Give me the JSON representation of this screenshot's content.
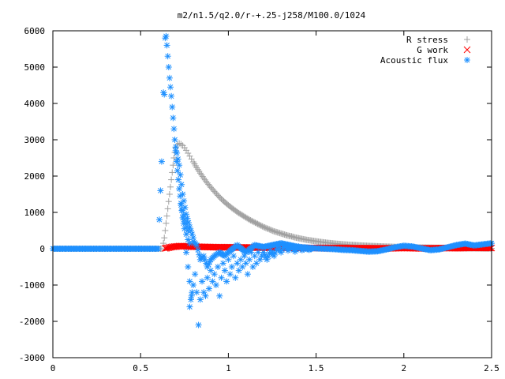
{
  "chart_data": {
    "type": "scatter",
    "title": "m2/n1.5/q2.0/r-+.25-j258/M100.0/1024",
    "xlabel": "",
    "ylabel": "",
    "xlim": [
      0,
      2.5
    ],
    "ylim": [
      -3000,
      6000
    ],
    "x_ticks": [
      0,
      0.5,
      1,
      1.5,
      2,
      2.5
    ],
    "x_tick_labels": [
      "0",
      "0.5",
      "1",
      "1.5",
      "2",
      "2.5"
    ],
    "y_ticks": [
      -3000,
      -2000,
      -1000,
      0,
      1000,
      2000,
      3000,
      4000,
      5000,
      6000
    ],
    "y_tick_labels": [
      "-3000",
      "-2000",
      "-1000",
      "0",
      "1000",
      "2000",
      "3000",
      "4000",
      "5000",
      "6000"
    ],
    "grid": false,
    "legend_position": "top-right",
    "series": [
      {
        "name": "R stress",
        "marker": "plus",
        "color": "#a0a0a0",
        "points": [
          [
            0.0,
            0
          ],
          [
            0.05,
            0
          ],
          [
            0.1,
            0
          ],
          [
            0.15,
            0
          ],
          [
            0.2,
            0
          ],
          [
            0.25,
            0
          ],
          [
            0.3,
            0
          ],
          [
            0.35,
            0
          ],
          [
            0.4,
            0
          ],
          [
            0.45,
            0
          ],
          [
            0.5,
            0
          ],
          [
            0.55,
            0
          ],
          [
            0.6,
            0
          ],
          [
            0.62,
            0
          ],
          [
            0.63,
            150
          ],
          [
            0.635,
            300
          ],
          [
            0.64,
            500
          ],
          [
            0.645,
            700
          ],
          [
            0.65,
            900
          ],
          [
            0.655,
            1100
          ],
          [
            0.66,
            1300
          ],
          [
            0.665,
            1500
          ],
          [
            0.67,
            1700
          ],
          [
            0.675,
            1900
          ],
          [
            0.68,
            2100
          ],
          [
            0.685,
            2300
          ],
          [
            0.69,
            2500
          ],
          [
            0.695,
            2650
          ],
          [
            0.7,
            2780
          ],
          [
            0.71,
            2870
          ],
          [
            0.72,
            2900
          ],
          [
            0.73,
            2880
          ],
          [
            0.74,
            2840
          ],
          [
            0.75,
            2780
          ],
          [
            0.76,
            2710
          ],
          [
            0.77,
            2630
          ],
          [
            0.78,
            2550
          ],
          [
            0.79,
            2470
          ],
          [
            0.8,
            2390
          ],
          [
            0.82,
            2230
          ],
          [
            0.84,
            2080
          ],
          [
            0.86,
            1940
          ],
          [
            0.88,
            1810
          ],
          [
            0.9,
            1690
          ],
          [
            0.92,
            1580
          ],
          [
            0.94,
            1470
          ],
          [
            0.96,
            1370
          ],
          [
            0.98,
            1280
          ],
          [
            1.0,
            1200
          ],
          [
            1.02,
            1120
          ],
          [
            1.04,
            1050
          ],
          [
            1.06,
            980
          ],
          [
            1.08,
            920
          ],
          [
            1.1,
            860
          ],
          [
            1.12,
            800
          ],
          [
            1.14,
            750
          ],
          [
            1.16,
            700
          ],
          [
            1.18,
            650
          ],
          [
            1.2,
            600
          ],
          [
            1.22,
            560
          ],
          [
            1.24,
            520
          ],
          [
            1.26,
            480
          ],
          [
            1.28,
            450
          ],
          [
            1.3,
            420
          ],
          [
            1.32,
            390
          ],
          [
            1.34,
            360
          ],
          [
            1.36,
            340
          ],
          [
            1.38,
            310
          ],
          [
            1.4,
            290
          ],
          [
            1.42,
            270
          ],
          [
            1.44,
            250
          ],
          [
            1.46,
            235
          ],
          [
            1.48,
            220
          ],
          [
            1.5,
            205
          ],
          [
            1.52,
            190
          ],
          [
            1.54,
            178
          ],
          [
            1.56,
            165
          ],
          [
            1.58,
            155
          ],
          [
            1.6,
            145
          ],
          [
            1.62,
            135
          ],
          [
            1.64,
            127
          ],
          [
            1.66,
            120
          ],
          [
            1.68,
            112
          ],
          [
            1.7,
            105
          ],
          [
            1.75,
            90
          ],
          [
            1.8,
            78
          ],
          [
            1.85,
            68
          ],
          [
            1.9,
            58
          ],
          [
            1.95,
            50
          ],
          [
            2.0,
            43
          ],
          [
            2.05,
            37
          ],
          [
            2.1,
            32
          ],
          [
            2.15,
            28
          ],
          [
            2.2,
            24
          ],
          [
            2.25,
            20
          ],
          [
            2.3,
            17
          ],
          [
            2.35,
            14
          ],
          [
            2.4,
            12
          ],
          [
            2.45,
            10
          ],
          [
            2.5,
            8
          ]
        ]
      },
      {
        "name": "G work",
        "marker": "cross",
        "color": "#ff0000",
        "points": [
          [
            0.64,
            10
          ],
          [
            0.66,
            30
          ],
          [
            0.68,
            50
          ],
          [
            0.7,
            60
          ],
          [
            0.72,
            70
          ],
          [
            0.74,
            70
          ],
          [
            0.76,
            65
          ],
          [
            0.78,
            60
          ],
          [
            0.8,
            55
          ],
          [
            0.85,
            50
          ],
          [
            0.9,
            45
          ],
          [
            0.95,
            40
          ],
          [
            1.0,
            40
          ],
          [
            1.05,
            35
          ],
          [
            1.1,
            35
          ],
          [
            1.15,
            30
          ],
          [
            1.2,
            30
          ],
          [
            1.25,
            25
          ],
          [
            1.3,
            25
          ],
          [
            1.35,
            25
          ],
          [
            1.4,
            20
          ],
          [
            1.45,
            20
          ],
          [
            1.5,
            20
          ],
          [
            1.55,
            20
          ],
          [
            1.6,
            20
          ],
          [
            1.65,
            20
          ],
          [
            1.7,
            15
          ],
          [
            1.75,
            15
          ],
          [
            1.8,
            15
          ],
          [
            1.85,
            10
          ],
          [
            1.9,
            10
          ],
          [
            1.95,
            15
          ],
          [
            2.0,
            20
          ],
          [
            2.05,
            15
          ],
          [
            2.1,
            10
          ],
          [
            2.15,
            10
          ],
          [
            2.2,
            15
          ],
          [
            2.25,
            20
          ],
          [
            2.3,
            15
          ],
          [
            2.35,
            20
          ],
          [
            2.4,
            25
          ],
          [
            2.45,
            20
          ],
          [
            2.5,
            20
          ]
        ]
      },
      {
        "name": "Acoustic flux",
        "marker": "star",
        "color": "#1e90ff",
        "points": [
          [
            0.0,
            0
          ],
          [
            0.05,
            0
          ],
          [
            0.1,
            0
          ],
          [
            0.15,
            0
          ],
          [
            0.2,
            0
          ],
          [
            0.25,
            0
          ],
          [
            0.3,
            0
          ],
          [
            0.35,
            0
          ],
          [
            0.4,
            0
          ],
          [
            0.45,
            0
          ],
          [
            0.5,
            0
          ],
          [
            0.55,
            0
          ],
          [
            0.6,
            0
          ],
          [
            0.62,
            2400
          ],
          [
            0.63,
            4300
          ],
          [
            0.635,
            4250
          ],
          [
            0.64,
            5800
          ],
          [
            0.645,
            5850
          ],
          [
            0.65,
            5600
          ],
          [
            0.655,
            5300
          ],
          [
            0.66,
            5000
          ],
          [
            0.665,
            4700
          ],
          [
            0.67,
            4450
          ],
          [
            0.675,
            4200
          ],
          [
            0.68,
            3900
          ],
          [
            0.685,
            3600
          ],
          [
            0.69,
            3300
          ],
          [
            0.695,
            3000
          ],
          [
            0.7,
            2700
          ],
          [
            0.705,
            2400
          ],
          [
            0.71,
            2150
          ],
          [
            0.715,
            1900
          ],
          [
            0.72,
            1650
          ],
          [
            0.725,
            1450
          ],
          [
            0.73,
            1250
          ],
          [
            0.735,
            1050
          ],
          [
            0.74,
            850
          ],
          [
            0.745,
            700
          ],
          [
            0.75,
            550
          ],
          [
            0.76,
            400
          ],
          [
            0.77,
            250
          ],
          [
            0.78,
            150
          ],
          [
            0.7,
            2800
          ],
          [
            0.72,
            2300
          ],
          [
            0.74,
            1500
          ],
          [
            0.76,
            950
          ],
          [
            0.78,
            600
          ],
          [
            0.8,
            300
          ],
          [
            0.73,
            1200
          ],
          [
            0.75,
            800
          ],
          [
            0.77,
            500
          ],
          [
            0.76,
            -100
          ],
          [
            0.77,
            -500
          ],
          [
            0.78,
            -900
          ],
          [
            0.79,
            -1300
          ],
          [
            0.78,
            -1600
          ],
          [
            0.8,
            -1000
          ],
          [
            0.81,
            -700
          ],
          [
            0.82,
            -1200
          ],
          [
            0.83,
            -2100
          ],
          [
            0.84,
            -1400
          ],
          [
            0.85,
            -900
          ],
          [
            0.86,
            -1200
          ],
          [
            0.87,
            -1300
          ],
          [
            0.88,
            -800
          ],
          [
            0.89,
            -1100
          ],
          [
            0.9,
            -600
          ],
          [
            0.91,
            -900
          ],
          [
            0.92,
            -700
          ],
          [
            0.93,
            -1000
          ],
          [
            0.94,
            -500
          ],
          [
            0.95,
            -1300
          ],
          [
            0.96,
            -800
          ],
          [
            0.97,
            -400
          ],
          [
            0.98,
            -600
          ],
          [
            0.99,
            -900
          ],
          [
            1.0,
            -300
          ],
          [
            1.01,
            -700
          ],
          [
            1.02,
            -500
          ],
          [
            1.03,
            -200
          ],
          [
            1.04,
            -800
          ],
          [
            1.05,
            -400
          ],
          [
            1.06,
            -600
          ],
          [
            1.07,
            -300
          ],
          [
            1.08,
            -500
          ],
          [
            1.09,
            -200
          ],
          [
            1.1,
            -400
          ],
          [
            1.11,
            -700
          ],
          [
            1.12,
            -300
          ],
          [
            1.13,
            -100
          ],
          [
            1.14,
            -500
          ],
          [
            1.15,
            -200
          ],
          [
            1.16,
            -400
          ],
          [
            1.17,
            -100
          ],
          [
            1.18,
            -300
          ],
          [
            1.19,
            -200
          ],
          [
            1.2,
            -100
          ],
          [
            1.22,
            -300
          ],
          [
            1.24,
            -50
          ],
          [
            1.26,
            -200
          ],
          [
            1.28,
            50
          ],
          [
            1.3,
            -100
          ],
          [
            1.32,
            100
          ],
          [
            1.34,
            -50
          ],
          [
            1.36,
            50
          ],
          [
            1.38,
            -80
          ],
          [
            1.4,
            60
          ],
          [
            1.42,
            -40
          ],
          [
            1.44,
            30
          ],
          [
            1.46,
            -30
          ],
          [
            1.48,
            20
          ],
          [
            0.8,
            200
          ],
          [
            0.82,
            100
          ],
          [
            0.84,
            -300
          ],
          [
            0.86,
            -200
          ],
          [
            0.88,
            -500
          ],
          [
            0.9,
            -300
          ],
          [
            0.92,
            -200
          ],
          [
            0.95,
            -100
          ],
          [
            0.98,
            -200
          ],
          [
            1.0,
            -100
          ],
          [
            1.05,
            100
          ],
          [
            1.1,
            -100
          ],
          [
            1.15,
            100
          ],
          [
            1.2,
            50
          ],
          [
            1.25,
            100
          ],
          [
            1.3,
            150
          ],
          [
            1.35,
            100
          ],
          [
            1.4,
            50
          ],
          [
            1.5,
            10
          ],
          [
            1.55,
            0
          ],
          [
            1.6,
            -10
          ],
          [
            1.65,
            -30
          ],
          [
            1.7,
            -40
          ],
          [
            1.75,
            -60
          ],
          [
            1.8,
            -80
          ],
          [
            1.85,
            -70
          ],
          [
            1.9,
            -20
          ],
          [
            1.95,
            40
          ],
          [
            2.0,
            80
          ],
          [
            2.05,
            60
          ],
          [
            2.1,
            10
          ],
          [
            2.15,
            -40
          ],
          [
            2.2,
            -20
          ],
          [
            2.25,
            40
          ],
          [
            2.3,
            100
          ],
          [
            2.35,
            140
          ],
          [
            2.4,
            90
          ],
          [
            2.45,
            120
          ],
          [
            2.5,
            150
          ]
        ]
      }
    ]
  }
}
